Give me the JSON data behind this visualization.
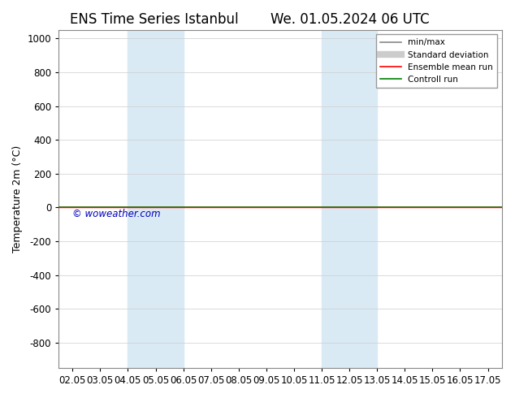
{
  "title_left": "ENS Time Series Istanbul",
  "title_right": "We. 01.05.2024 06 UTC",
  "ylabel": "Temperature 2m (°C)",
  "ylim_top": -950,
  "ylim_bottom": 1050,
  "yticks": [
    -800,
    -600,
    -400,
    -200,
    0,
    200,
    400,
    600,
    800,
    1000
  ],
  "xtick_labels": [
    "02.05",
    "03.05",
    "04.05",
    "05.05",
    "06.05",
    "07.05",
    "08.05",
    "09.05",
    "10.05",
    "11.05",
    "12.05",
    "13.05",
    "14.05",
    "15.05",
    "16.05",
    "17.05"
  ],
  "xtick_positions": [
    0,
    1,
    2,
    3,
    4,
    5,
    6,
    7,
    8,
    9,
    10,
    11,
    12,
    13,
    14,
    15
  ],
  "xlim_start": -0.5,
  "xlim_end": 15.5,
  "blue_bands": [
    {
      "x_start": 2,
      "x_end": 4
    },
    {
      "x_start": 9,
      "x_end": 11
    }
  ],
  "blue_band_color": "#daeaf5",
  "ensemble_mean_color": "#ff0000",
  "control_run_color": "#008000",
  "background_color": "#ffffff",
  "plot_bg_color": "#ffffff",
  "grid_color": "#cccccc",
  "legend_items": [
    "min/max",
    "Standard deviation",
    "Ensemble mean run",
    "Controll run"
  ],
  "legend_colors": [
    "#aaaaaa",
    "#cccccc",
    "#ff0000",
    "#008000"
  ],
  "watermark": "© woweather.com",
  "watermark_color": "#0000bb",
  "title_fontsize": 12,
  "tick_fontsize": 8.5,
  "ylabel_fontsize": 9
}
